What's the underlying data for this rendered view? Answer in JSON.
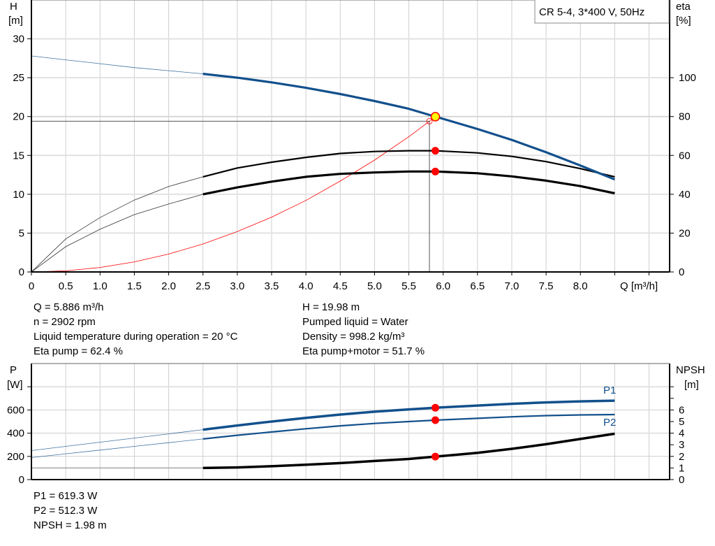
{
  "title_box": "CR 5-4, 3*400 V, 50Hz",
  "colors": {
    "blue": "#12508c",
    "black": "#000000",
    "red": "#ff0000",
    "duty_point": "#ffff00",
    "grid": "#cfcfcf"
  },
  "info_top": {
    "left": [
      "Q = 5.886 m³/h",
      "n = 2902 rpm",
      "Liquid temperature during operation = 20 °C",
      "Eta pump = 62.4 %"
    ],
    "right": [
      "H = 19.98 m",
      "Pumped liquid = Water",
      "Density = 998.2 kg/m³",
      "Eta pump+motor = 51.7 %"
    ]
  },
  "info_bottom": [
    "P1 = 619.3 W",
    "P2 = 512.3 W",
    "NPSH = 1.98 m"
  ],
  "chart_data": [
    {
      "type": "line",
      "xlabel": "Q [m³/h]",
      "ylabel_left": [
        "H",
        "[m]"
      ],
      "ylabel_right": [
        "eta",
        "[%]"
      ],
      "xlim": [
        0,
        9.3
      ],
      "ylim_left": [
        0,
        35
      ],
      "ylim_right": [
        0,
        140
      ],
      "x_ticks": [
        "0",
        "0.5",
        "1.0",
        "1.5",
        "2.0",
        "2.5",
        "3.0",
        "3.5",
        "4.0",
        "4.5",
        "5.0",
        "5.5",
        "6.0",
        "6.5",
        "7.0",
        "7.5",
        "8.0"
      ],
      "y_ticks_left": [
        0,
        5,
        10,
        15,
        20,
        25,
        30
      ],
      "y_ticks_right": [
        0,
        20,
        40,
        60,
        80,
        100
      ],
      "grid": true,
      "series": [
        {
          "key": "H",
          "axis": "left",
          "color": "#12508c",
          "x": [
            0,
            0.5,
            1,
            1.5,
            2,
            2.5,
            3,
            3.5,
            4,
            4.5,
            5,
            5.5,
            5.886,
            6,
            6.5,
            7,
            7.5,
            8,
            8.5
          ],
          "y": [
            27.8,
            27.3,
            26.8,
            26.3,
            25.9,
            25.5,
            25.0,
            24.4,
            23.7,
            22.9,
            22.0,
            21.0,
            19.98,
            19.7,
            18.4,
            17.0,
            15.4,
            13.7,
            11.9
          ]
        },
        {
          "key": "eta_pump",
          "axis": "right",
          "color": "#000000",
          "x": [
            0,
            0.5,
            1,
            1.5,
            2,
            2.5,
            3,
            3.5,
            4,
            4.5,
            5,
            5.5,
            5.886,
            6.5,
            7,
            7.5,
            8,
            8.5
          ],
          "y": [
            0,
            17,
            28,
            37,
            44,
            49,
            53.5,
            56.5,
            59,
            61,
            62,
            62.4,
            62.4,
            61.3,
            59.5,
            56.8,
            53.2,
            49
          ]
        },
        {
          "key": "eta_total",
          "axis": "right",
          "color": "#000000",
          "x": [
            0,
            0.5,
            1,
            1.5,
            2,
            2.5,
            3,
            3.5,
            4,
            4.5,
            5,
            5.5,
            5.886,
            6.5,
            7,
            7.5,
            8,
            8.5
          ],
          "y": [
            0,
            13,
            22,
            29.5,
            35,
            40,
            43.5,
            46.5,
            49,
            50.5,
            51.2,
            51.7,
            51.7,
            50.8,
            49.2,
            47,
            44.2,
            40.5
          ]
        },
        {
          "key": "system",
          "axis": "left",
          "color": "#ff0000",
          "x": [
            0,
            0.5,
            1,
            1.5,
            2,
            2.5,
            3,
            3.5,
            4,
            4.5,
            5,
            5.5,
            5.8,
            5.886
          ],
          "y": [
            0,
            0.14,
            0.58,
            1.3,
            2.3,
            3.6,
            5.2,
            7.05,
            9.2,
            11.7,
            14.4,
            17.4,
            19.4,
            19.98
          ]
        }
      ],
      "duty_point": {
        "Q": 5.886,
        "H": 19.98,
        "eta_pump": 62.4,
        "eta_total": 51.7
      },
      "required_point": {
        "Q": 5.8,
        "H": 19.4
      }
    },
    {
      "type": "line",
      "ylabel_left": [
        "P",
        "[W]"
      ],
      "ylabel_right": [
        "NPSH",
        "[m]"
      ],
      "xlim": [
        0,
        9.3
      ],
      "ylim_left": [
        0,
        1000
      ],
      "ylim_right": [
        0,
        10
      ],
      "y_ticks_left": [
        0,
        200,
        400,
        600,
        800
      ],
      "y_tick_labels_left": [
        "0",
        "200",
        "400",
        "600",
        ""
      ],
      "y_ticks_right": [
        0,
        1,
        2,
        3,
        4,
        5,
        6,
        7,
        8
      ],
      "y_tick_labels_right": [
        "0",
        "1",
        "2",
        "3",
        "4",
        "5",
        "6",
        "",
        ""
      ],
      "grid": true,
      "series": [
        {
          "key": "P1",
          "name": "P1",
          "axis": "left",
          "color": "#12508c",
          "x": [
            0,
            0.5,
            1,
            1.5,
            2,
            2.5,
            3,
            3.5,
            4,
            4.5,
            5,
            5.5,
            5.886,
            6.5,
            7,
            7.5,
            8,
            8.5
          ],
          "y": [
            250,
            286,
            322,
            358,
            394,
            430,
            466,
            500,
            532,
            560,
            585,
            605,
            619.3,
            638,
            653,
            665,
            674,
            680
          ]
        },
        {
          "key": "P2",
          "name": "P2",
          "axis": "left",
          "color": "#12508c",
          "x": [
            0,
            0.5,
            1,
            1.5,
            2,
            2.5,
            3,
            3.5,
            4,
            4.5,
            5,
            5.5,
            5.886,
            6.5,
            7,
            7.5,
            8,
            8.5
          ],
          "y": [
            190,
            222,
            254,
            286,
            318,
            350,
            382,
            410,
            438,
            463,
            484,
            500,
            512.3,
            528,
            541,
            551,
            557,
            560
          ]
        },
        {
          "key": "NPSH",
          "axis": "right",
          "color": "#000000",
          "x": [
            0,
            0.5,
            1,
            1.5,
            2,
            2.5,
            3,
            3.5,
            4,
            4.5,
            5,
            5.5,
            5.886,
            6.5,
            7,
            7.5,
            8,
            8.5
          ],
          "y": [
            1.0,
            1.0,
            1.0,
            1.0,
            1.0,
            1.0,
            1.05,
            1.15,
            1.28,
            1.42,
            1.6,
            1.78,
            1.98,
            2.3,
            2.65,
            3.05,
            3.5,
            3.95
          ]
        }
      ],
      "duty_point": {
        "Q": 5.886,
        "P1": 619.3,
        "P2": 512.3,
        "NPSH": 1.98
      }
    }
  ]
}
